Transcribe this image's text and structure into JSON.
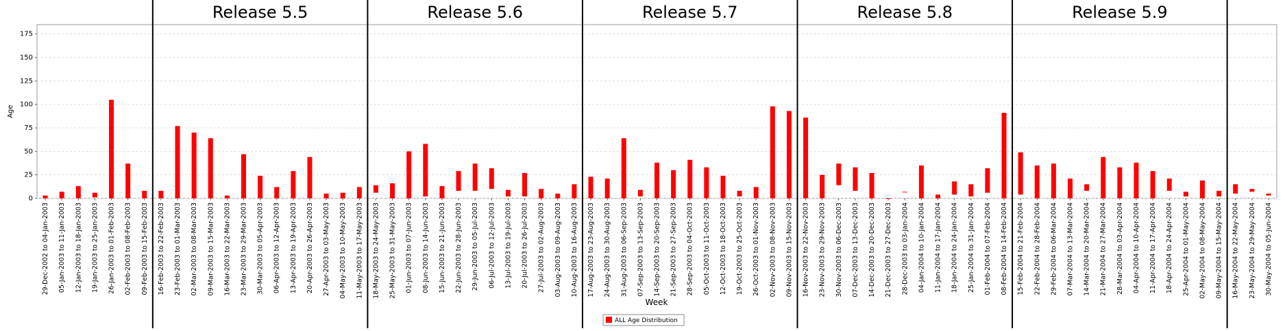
{
  "chart_data": {
    "type": "box",
    "y_label": "Age",
    "x_label": "Week",
    "legend": "ALL Age Distribution",
    "color": "#ff0000",
    "annotations": [
      "Release 5.5",
      "Release 5.6",
      "Release 5.7",
      "Release 5.8",
      "Release 5.9"
    ],
    "ylim": [
      0,
      185
    ],
    "yticks": [
      0,
      25,
      50,
      75,
      100,
      125,
      150,
      175
    ],
    "grid": true,
    "categories": [
      "29-Dec-2002 to 04-Jan-2003",
      "05-Jan-2003 to 11-Jan-2003",
      "12-Jan-2003 to 18-Jan-2003",
      "19-Jan-2003 to 25-Jan-2003",
      "26-Jan-2003 to 01-Feb-2003",
      "02-Feb-2003 to 08-Feb-2003",
      "09-Feb-2003 to 15-Feb-2003",
      "16-Feb-2003 to 22-Feb-2003",
      "23-Feb-2003 to 01-Mar-2003",
      "02-Mar-2003 to 08-Mar-2003",
      "09-Mar-2003 to 15-Mar-2003",
      "16-Mar-2003 to 22-Mar-2003",
      "23-Mar-2003 to 29-Mar-2003",
      "30-Mar-2003 to 05-Apr-2003",
      "06-Apr-2003 to 12-Apr-2003",
      "13-Apr-2003 to 19-Apr-2003",
      "20-Apr-2003 to 26-Apr-2003",
      "27-Apr-2003 to 03-May-2003",
      "04-May-2003 to 10-May-2003",
      "11-May-2003 to 17-May-2003",
      "18-May-2003 to 24-May-2003",
      "25-May-2003 to 31-May-2003",
      "01-Jun-2003 to 07-Jun-2003",
      "08-Jun-2003 to 14-Jun-2003",
      "15-Jun-2003 to 21-Jun-2003",
      "22-Jun-2003 to 28-Jun-2003",
      "29-Jun-2003 to 05-Jul-2003",
      "06-Jul-2003 to 12-Jul-2003",
      "13-Jul-2003 to 19-Jul-2003",
      "20-Jul-2003 to 26-Jul-2003",
      "27-Jul-2003 to 02-Aug-2003",
      "03-Aug-2003 to 09-Aug-2003",
      "10-Aug-2003 to 16-Aug-2003",
      "17-Aug-2003 to 23-Aug-2003",
      "24-Aug-2003 to 30-Aug-2003",
      "31-Aug-2003 to 06-Sep-2003",
      "07-Sep-2003 to 13-Sep-2003",
      "14-Sep-2003 to 20-Sep-2003",
      "21-Sep-2003 to 27-Sep-2003",
      "28-Sep-2003 to 04-Oct-2003",
      "05-Oct-2003 to 11-Oct-2003",
      "12-Oct-2003 to 18-Oct-2003",
      "19-Oct-2003 to 25-Oct-2003",
      "26-Oct-2003 to 01-Nov-2003",
      "02-Nov-2003 to 08-Nov-2003",
      "09-Nov-2003 to 15-Nov-2003",
      "16-Nov-2003 to 22-Nov-2003",
      "23-Nov-2003 to 29-Nov-2003",
      "30-Nov-2003 to 06-Dec-2003",
      "07-Dec-2003 to 13-Dec-2003",
      "14-Dec-2003 to 20-Dec-2003",
      "21-Dec-2003 to 27-Dec-2003",
      "28-Dec-2003 to 03-Jan-2004",
      "04-Jan-2004 to 10-Jan-2004",
      "11-Jan-2004 to 17-Jan-2004",
      "18-Jan-2004 to 24-Jan-2004",
      "25-Jan-2004 to 31-Jan-2004",
      "01-Feb-2004 to 07-Feb-2004",
      "08-Feb-2004 to 14-Feb-2004",
      "15-Feb-2004 to 21-Feb-2004",
      "22-Feb-2004 to 28-Feb-2004",
      "29-Feb-2004 to 06-Mar-2004",
      "07-Mar-2004 to 13-Mar-2004",
      "14-Mar-2004 to 20-Mar-2004",
      "21-Mar-2004 to 27-Mar-2004",
      "28-Mar-2004 to 03-Apr-2004",
      "04-Apr-2004 to 10-Apr-2004",
      "11-Apr-2004 to 17-Apr-2004",
      "18-Apr-2004 to 24-Apr-2004",
      "25-Apr-2004 to 01-May-2004",
      "02-May-2004 to 08-May-2004",
      "09-May-2004 to 15-May-2004",
      "16-May-2004 to 22-May-2004",
      "23-May-2004 to 29-May-2004",
      "30-May-2004 to 05-Jun-2004"
    ],
    "low": [
      0,
      0,
      0,
      1,
      0,
      0,
      0,
      0,
      0,
      0,
      0,
      0,
      0,
      0,
      0,
      0,
      0,
      0,
      0,
      0,
      6,
      0,
      0,
      2,
      0,
      8,
      8,
      10,
      2,
      2,
      0,
      0,
      0,
      0,
      0,
      0,
      2,
      0,
      0,
      0,
      0,
      0,
      2,
      0,
      0,
      0,
      0,
      0,
      14,
      8,
      0,
      0,
      7,
      0,
      0,
      4,
      2,
      6,
      0,
      4,
      0,
      0,
      0,
      8,
      0,
      0,
      0,
      0,
      8,
      2,
      0,
      2,
      5,
      7,
      3
    ],
    "high": [
      3,
      7,
      13,
      6,
      105,
      37,
      8,
      8,
      77,
      70,
      64,
      3,
      47,
      24,
      12,
      29,
      44,
      5,
      6,
      12,
      14,
      16,
      50,
      58,
      13,
      29,
      37,
      32,
      9,
      27,
      10,
      5,
      15,
      23,
      21,
      64,
      9,
      38,
      30,
      41,
      33,
      24,
      8,
      12,
      98,
      93,
      86,
      25,
      37,
      33,
      27,
      0,
      7,
      35,
      4,
      18,
      15,
      32,
      91,
      49,
      35,
      37,
      21,
      15,
      44,
      33,
      38,
      29,
      21,
      7,
      19,
      8,
      15,
      10,
      5
    ]
  }
}
